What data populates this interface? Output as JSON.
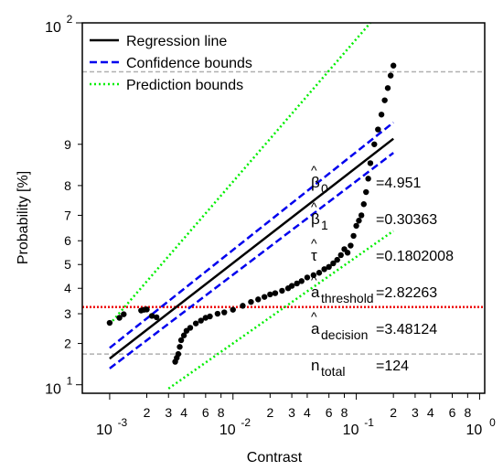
{
  "chart_data": {
    "type": "scatter",
    "xlabel": "Contrast",
    "ylabel": "Probability [%]",
    "x_scale": "log",
    "y_scale": "probit",
    "xlim": [
      0.0006,
      1.1
    ],
    "ylim_percent": [
      8.5,
      100
    ],
    "x_decades": [
      {
        "value": 0.001,
        "base": "10",
        "exp": "-3"
      },
      {
        "value": 0.01,
        "base": "10",
        "exp": "-2"
      },
      {
        "value": 0.1,
        "base": "10",
        "exp": "-1"
      },
      {
        "value": 1,
        "base": "10",
        "exp": "0"
      }
    ],
    "x_minor_ticks": [
      {
        "value": 0.002,
        "label": "2"
      },
      {
        "value": 0.003,
        "label": "3"
      },
      {
        "value": 0.004,
        "label": "4"
      },
      {
        "value": 0.006,
        "label": "6"
      },
      {
        "value": 0.008,
        "label": "8"
      },
      {
        "value": 0.02,
        "label": "2"
      },
      {
        "value": 0.03,
        "label": "3"
      },
      {
        "value": 0.04,
        "label": "4"
      },
      {
        "value": 0.06,
        "label": "6"
      },
      {
        "value": 0.08,
        "label": "8"
      },
      {
        "value": 0.2,
        "label": "2"
      },
      {
        "value": 0.3,
        "label": "3"
      },
      {
        "value": 0.4,
        "label": "4"
      },
      {
        "value": 0.6,
        "label": "6"
      },
      {
        "value": 0.8,
        "label": "8"
      }
    ],
    "y_decades": [
      {
        "value": 10,
        "base": "10",
        "exp": "1"
      },
      {
        "value": 100,
        "base": "10",
        "exp": "2"
      }
    ],
    "y_minor_ticks": [
      {
        "value": 20,
        "label": "2"
      },
      {
        "value": 30,
        "label": "3"
      },
      {
        "value": 40,
        "label": "4"
      },
      {
        "value": 50,
        "label": "5"
      },
      {
        "value": 60,
        "label": "6"
      },
      {
        "value": 70,
        "label": "7"
      },
      {
        "value": 80,
        "label": "8"
      },
      {
        "value": 90,
        "label": "9"
      }
    ],
    "series": [
      {
        "name": "Regression line",
        "style": "solid",
        "color": "#000000",
        "points": [
          [
            0.001,
            15.8
          ],
          [
            0.2,
            91.0
          ]
        ]
      },
      {
        "name": "Confidence bounds",
        "style": "dashed",
        "color": "#0000ee",
        "points_upper": [
          [
            0.001,
            18.7
          ],
          [
            0.2,
            93.5
          ]
        ],
        "points_lower": [
          [
            0.001,
            13.4
          ],
          [
            0.2,
            88.3
          ]
        ]
      },
      {
        "name": "Prediction bounds",
        "style": "dotted",
        "color": "#00ee00",
        "points_upper": [
          [
            0.001,
            26.2
          ],
          [
            0.13,
            100
          ]
        ],
        "points_lower": [
          [
            0.003,
            9.3
          ],
          [
            0.2,
            64.0
          ]
        ]
      }
    ],
    "scatter_points": [
      [
        0.001,
        26.7
      ],
      [
        0.0012,
        28.5
      ],
      [
        0.0013,
        29.8
      ],
      [
        0.0018,
        31.2
      ],
      [
        0.0019,
        31.5
      ],
      [
        0.002,
        31.6
      ],
      [
        0.0022,
        29.2
      ],
      [
        0.0024,
        28.7
      ],
      [
        0.0034,
        15.0
      ],
      [
        0.0035,
        16.0
      ],
      [
        0.0036,
        17.0
      ],
      [
        0.0037,
        19.0
      ],
      [
        0.0038,
        21.0
      ],
      [
        0.004,
        22.5
      ],
      [
        0.0042,
        24.0
      ],
      [
        0.0045,
        25.0
      ],
      [
        0.005,
        26.5
      ],
      [
        0.0055,
        27.5
      ],
      [
        0.006,
        28.5
      ],
      [
        0.0065,
        29.0
      ],
      [
        0.0075,
        30.0
      ],
      [
        0.0085,
        30.5
      ],
      [
        0.01,
        31.5
      ],
      [
        0.012,
        33.0
      ],
      [
        0.014,
        34.5
      ],
      [
        0.016,
        35.5
      ],
      [
        0.018,
        36.5
      ],
      [
        0.02,
        37.5
      ],
      [
        0.022,
        38.0
      ],
      [
        0.025,
        39.0
      ],
      [
        0.028,
        40.0
      ],
      [
        0.03,
        41.0
      ],
      [
        0.033,
        42.0
      ],
      [
        0.036,
        43.0
      ],
      [
        0.04,
        44.5
      ],
      [
        0.045,
        45.5
      ],
      [
        0.05,
        46.5
      ],
      [
        0.055,
        48.0
      ],
      [
        0.06,
        49.0
      ],
      [
        0.065,
        50.5
      ],
      [
        0.07,
        52.0
      ],
      [
        0.075,
        54.0
      ],
      [
        0.08,
        56.5
      ],
      [
        0.085,
        55.0
      ],
      [
        0.09,
        58.0
      ],
      [
        0.095,
        62.0
      ],
      [
        0.1,
        66.0
      ],
      [
        0.105,
        68.0
      ],
      [
        0.11,
        70.0
      ],
      [
        0.115,
        74.0
      ],
      [
        0.12,
        78.0
      ],
      [
        0.125,
        82.0
      ],
      [
        0.13,
        86.0
      ],
      [
        0.14,
        90.0
      ],
      [
        0.15,
        92.5
      ],
      [
        0.16,
        94.5
      ],
      [
        0.17,
        96.0
      ],
      [
        0.18,
        97.0
      ],
      [
        0.19,
        97.8
      ],
      [
        0.2,
        98.3
      ]
    ],
    "reference_lines": [
      {
        "y": 32.5,
        "color": "#ee0000",
        "style": "dotted"
      },
      {
        "y": 17.0,
        "color": "#b0b0b0",
        "style": "dashed"
      },
      {
        "y": 98.0,
        "color": "#b0b0b0",
        "style": "dashed"
      }
    ],
    "legend": {
      "position": "top-left"
    },
    "stats": [
      {
        "sym": "β",
        "hat": "^",
        "sub": "0",
        "value": "=4.951"
      },
      {
        "sym": "β",
        "hat": "^",
        "sub": "1",
        "value": "=0.30363"
      },
      {
        "sym": "τ",
        "hat": "^",
        "sub": "",
        "value": "=0.1802008"
      },
      {
        "sym": "a",
        "hat": "^",
        "sub": "threshold",
        "value": "=2.82263"
      },
      {
        "sym": "a",
        "hat": "^",
        "sub": "decision",
        "value": "=3.48124"
      },
      {
        "sym": "n",
        "hat": "",
        "sub": "total",
        "value": "=124"
      }
    ]
  }
}
